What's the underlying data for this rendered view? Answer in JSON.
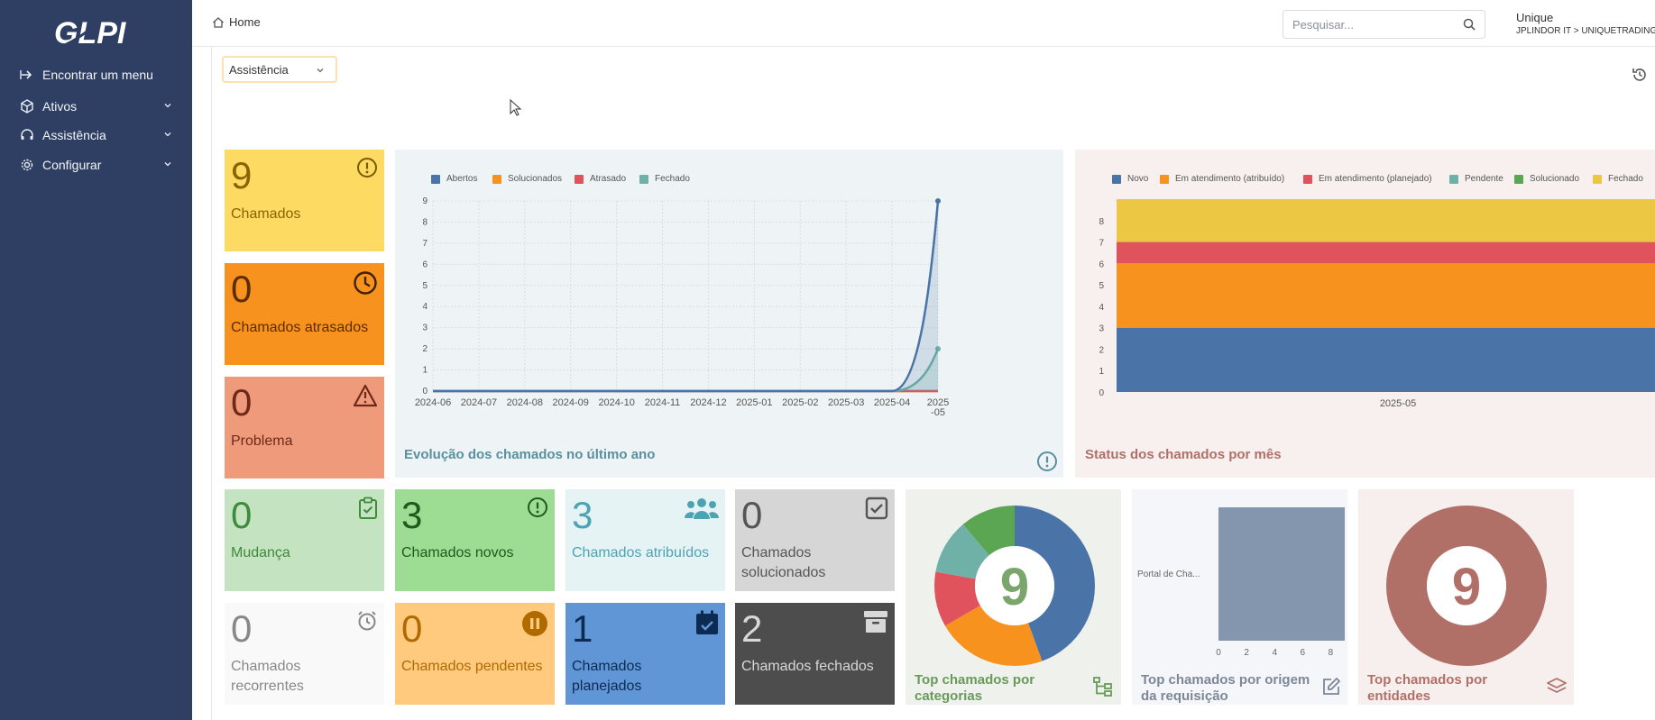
{
  "app": {
    "name": "GLPI"
  },
  "sidebar": {
    "items": [
      {
        "label": "Encontrar um menu",
        "icon": "arrow-right-icon"
      },
      {
        "label": "Ativos",
        "icon": "box-icon"
      },
      {
        "label": "Assistência",
        "icon": "headset-icon"
      },
      {
        "label": "Configurar",
        "icon": "gear-icon"
      }
    ]
  },
  "header": {
    "breadcrumb": "Home",
    "search_placeholder": "Pesquisar...",
    "user_name": "Unique",
    "user_entity": "JPLINDOR IT > UNIQUETRADING"
  },
  "dashboard": {
    "selected": "Assistência"
  },
  "colors": {
    "sidebar": "#2f3f64",
    "yellow": "#fddb62",
    "orange": "#f8921e",
    "salmon": "#f09a7c",
    "blue_series": "#4a74a8",
    "teal_series": "#6fb1a7",
    "red_series": "#e0535d",
    "green_series": "#5ba653",
    "amber_series": "#ebc744"
  },
  "cards": {
    "chamados": {
      "value": "9",
      "label": "Chamados"
    },
    "atrasados": {
      "value": "0",
      "label": "Chamados atrasados"
    },
    "problema": {
      "value": "0",
      "label": "Problema"
    },
    "mudanca": {
      "value": "0",
      "label": "Mudança"
    },
    "novos": {
      "value": "3",
      "label": "Chamados novos"
    },
    "atribuidos": {
      "value": "3",
      "label": "Chamados atribuídos"
    },
    "solucionados": {
      "value": "0",
      "label": "Chamados solucionados"
    },
    "recorrentes": {
      "value": "0",
      "label": "Chamados recorrentes"
    },
    "pendentes": {
      "value": "0",
      "label": "Chamados pendentes"
    },
    "planejados": {
      "value": "1",
      "label": "Chamados planejados"
    },
    "fechados": {
      "value": "2",
      "label": "Chamados fechados"
    }
  },
  "chart_data": [
    {
      "type": "line",
      "title": "Evolução dos chamados no último ano",
      "categories": [
        "2024-06",
        "2024-07",
        "2024-08",
        "2024-09",
        "2024-10",
        "2024-11",
        "2024-12",
        "2025-01",
        "2025-02",
        "2025-03",
        "2025-04",
        "2025-05"
      ],
      "series": [
        {
          "name": "Abertos",
          "color": "#4a74a8",
          "values": [
            0,
            0,
            0,
            0,
            0,
            0,
            0,
            0,
            0,
            0,
            0,
            9
          ]
        },
        {
          "name": "Solucionados",
          "color": "#f8921e",
          "values": [
            0,
            0,
            0,
            0,
            0,
            0,
            0,
            0,
            0,
            0,
            0,
            0
          ]
        },
        {
          "name": "Atrasado",
          "color": "#e0535d",
          "values": [
            0,
            0,
            0,
            0,
            0,
            0,
            0,
            0,
            0,
            0,
            0,
            0
          ]
        },
        {
          "name": "Fechado",
          "color": "#6fb1a7",
          "values": [
            0,
            0,
            0,
            0,
            0,
            0,
            0,
            0,
            0,
            0,
            0,
            2
          ]
        }
      ],
      "yticks": [
        "0",
        "1",
        "2",
        "3",
        "4",
        "5",
        "6",
        "7",
        "8",
        "9"
      ],
      "ylim": [
        0,
        9
      ],
      "grid": true,
      "legend": "top-left"
    },
    {
      "type": "bar",
      "stacked": true,
      "title": "Status dos chamados por mês",
      "categories": [
        "2025-05"
      ],
      "series": [
        {
          "name": "Novo",
          "color": "#4a74a8",
          "values": [
            3
          ]
        },
        {
          "name": "Em atendimento (atribuído)",
          "color": "#f8921e",
          "values": [
            3
          ]
        },
        {
          "name": "Em atendimento (planejado)",
          "color": "#e0535d",
          "values": [
            1
          ]
        },
        {
          "name": "Pendente",
          "color": "#6fb1a7",
          "values": [
            0
          ]
        },
        {
          "name": "Solucionado",
          "color": "#5ba653",
          "values": [
            0
          ]
        },
        {
          "name": "Fechado",
          "color": "#ebc744",
          "values": [
            2
          ]
        }
      ],
      "yticks": [
        "0",
        "1",
        "2",
        "3",
        "4",
        "5",
        "6",
        "7",
        "8"
      ],
      "ylim": [
        0,
        9
      ],
      "legend": "top"
    },
    {
      "type": "pie",
      "donut": true,
      "title": "Top chamados por categorias",
      "center_label": "9",
      "slices": [
        {
          "color": "#4a74a8",
          "value": 4
        },
        {
          "color": "#f8921e",
          "value": 2
        },
        {
          "color": "#e0535d",
          "value": 1
        },
        {
          "color": "#6fb1a7",
          "value": 1
        },
        {
          "color": "#5ba653",
          "value": 1
        }
      ]
    },
    {
      "type": "bar",
      "orientation": "horizontal",
      "title": "Top chamados por origem da requisição",
      "categories": [
        "Portal de Cha..."
      ],
      "values": [
        9
      ],
      "xticks": [
        "0",
        "2",
        "4",
        "6",
        "8"
      ],
      "xlim": [
        0,
        9
      ]
    },
    {
      "type": "pie",
      "donut": true,
      "title": "Top chamados por entidades",
      "center_label": "9",
      "slices": [
        {
          "color": "#b07068",
          "value": 9
        }
      ]
    }
  ]
}
